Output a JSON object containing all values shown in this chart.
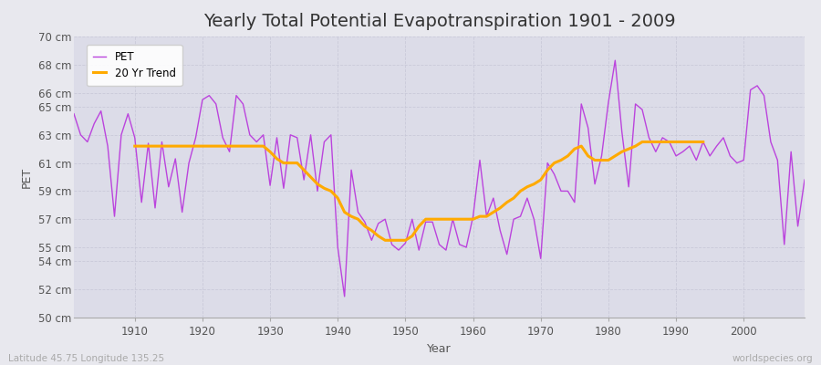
{
  "title": "Yearly Total Potential Evapotranspiration 1901 - 2009",
  "xlabel": "Year",
  "ylabel": "PET",
  "years": [
    1901,
    1902,
    1903,
    1904,
    1905,
    1906,
    1907,
    1908,
    1909,
    1910,
    1911,
    1912,
    1913,
    1914,
    1915,
    1916,
    1917,
    1918,
    1919,
    1920,
    1921,
    1922,
    1923,
    1924,
    1925,
    1926,
    1927,
    1928,
    1929,
    1930,
    1931,
    1932,
    1933,
    1934,
    1935,
    1936,
    1937,
    1938,
    1939,
    1940,
    1941,
    1942,
    1943,
    1944,
    1945,
    1946,
    1947,
    1948,
    1949,
    1950,
    1951,
    1952,
    1953,
    1954,
    1955,
    1956,
    1957,
    1958,
    1959,
    1960,
    1961,
    1962,
    1963,
    1964,
    1965,
    1966,
    1967,
    1968,
    1969,
    1970,
    1971,
    1972,
    1973,
    1974,
    1975,
    1976,
    1977,
    1978,
    1979,
    1980,
    1981,
    1982,
    1983,
    1984,
    1985,
    1986,
    1987,
    1988,
    1989,
    1990,
    1991,
    1992,
    1993,
    1994,
    1995,
    1996,
    1997,
    1998,
    1999,
    2000,
    2001,
    2002,
    2003,
    2004,
    2005,
    2006,
    2007,
    2008,
    2009
  ],
  "pet": [
    64.5,
    63.0,
    62.5,
    63.8,
    64.7,
    62.2,
    57.2,
    63.0,
    64.5,
    62.8,
    58.2,
    62.4,
    57.8,
    62.5,
    59.3,
    61.3,
    57.5,
    61.0,
    62.8,
    65.5,
    65.8,
    65.2,
    62.8,
    61.8,
    65.8,
    65.2,
    63.0,
    62.5,
    63.0,
    59.4,
    62.8,
    59.2,
    63.0,
    62.8,
    59.8,
    63.0,
    59.0,
    62.5,
    63.0,
    55.0,
    51.5,
    60.5,
    57.5,
    56.8,
    55.5,
    56.7,
    57.0,
    55.2,
    54.8,
    55.3,
    57.0,
    54.8,
    56.8,
    56.8,
    55.2,
    54.8,
    57.0,
    55.2,
    55.0,
    57.2,
    61.2,
    57.2,
    58.5,
    56.2,
    54.5,
    57.0,
    57.2,
    58.5,
    57.0,
    54.2,
    61.0,
    60.2,
    59.0,
    59.0,
    58.2,
    65.2,
    63.5,
    59.5,
    61.5,
    65.3,
    68.3,
    63.2,
    59.3,
    65.2,
    64.8,
    62.8,
    61.8,
    62.8,
    62.5,
    61.5,
    61.8,
    62.2,
    61.2,
    62.5,
    61.5,
    62.2,
    62.8,
    61.5,
    61.0,
    61.2,
    66.2,
    66.5,
    65.8,
    62.5,
    61.2,
    55.2,
    61.8,
    56.5,
    59.8
  ],
  "trend": [
    null,
    null,
    null,
    null,
    null,
    null,
    null,
    null,
    null,
    62.2,
    62.2,
    62.2,
    62.2,
    62.2,
    62.2,
    62.2,
    62.2,
    62.2,
    62.2,
    62.2,
    62.2,
    62.2,
    62.2,
    62.2,
    62.2,
    62.2,
    62.2,
    62.2,
    62.2,
    61.8,
    61.3,
    61.0,
    61.0,
    61.0,
    60.5,
    60.0,
    59.5,
    59.2,
    59.0,
    58.5,
    57.5,
    57.2,
    57.0,
    56.5,
    56.2,
    55.8,
    55.5,
    55.5,
    55.5,
    55.5,
    55.8,
    56.5,
    57.0,
    57.0,
    57.0,
    57.0,
    57.0,
    57.0,
    57.0,
    57.0,
    57.2,
    57.2,
    57.5,
    57.8,
    58.2,
    58.5,
    59.0,
    59.3,
    59.5,
    59.8,
    60.5,
    61.0,
    61.2,
    61.5,
    62.0,
    62.2,
    61.5,
    61.2,
    61.2,
    61.2,
    61.5,
    61.8,
    62.0,
    62.2,
    62.5,
    62.5,
    62.5,
    62.5,
    62.5,
    62.5,
    62.5,
    62.5,
    62.5,
    62.5,
    null,
    null,
    null,
    null,
    null,
    null,
    null,
    null,
    null,
    null
  ],
  "pet_color": "#bb44dd",
  "trend_color": "#ffaa00",
  "fig_bg_color": "#e8e8ee",
  "plot_bg_color": "#dcdce8",
  "grid_color": "#c8c8d8",
  "ylim": [
    50,
    70
  ],
  "yticks": [
    50,
    52,
    54,
    55,
    57,
    59,
    61,
    63,
    65,
    66,
    68,
    70
  ],
  "xtick_positions": [
    1910,
    1920,
    1930,
    1940,
    1950,
    1960,
    1970,
    1980,
    1990,
    2000
  ],
  "xlabel_bottom": "Latitude 45.75 Longitude 135.25",
  "watermark": "worldspecies.org",
  "legend_labels": [
    "PET",
    "20 Yr Trend"
  ],
  "title_fontsize": 14,
  "tick_fontsize": 8.5,
  "xlabel_fontsize": 9,
  "ylabel_fontsize": 9
}
